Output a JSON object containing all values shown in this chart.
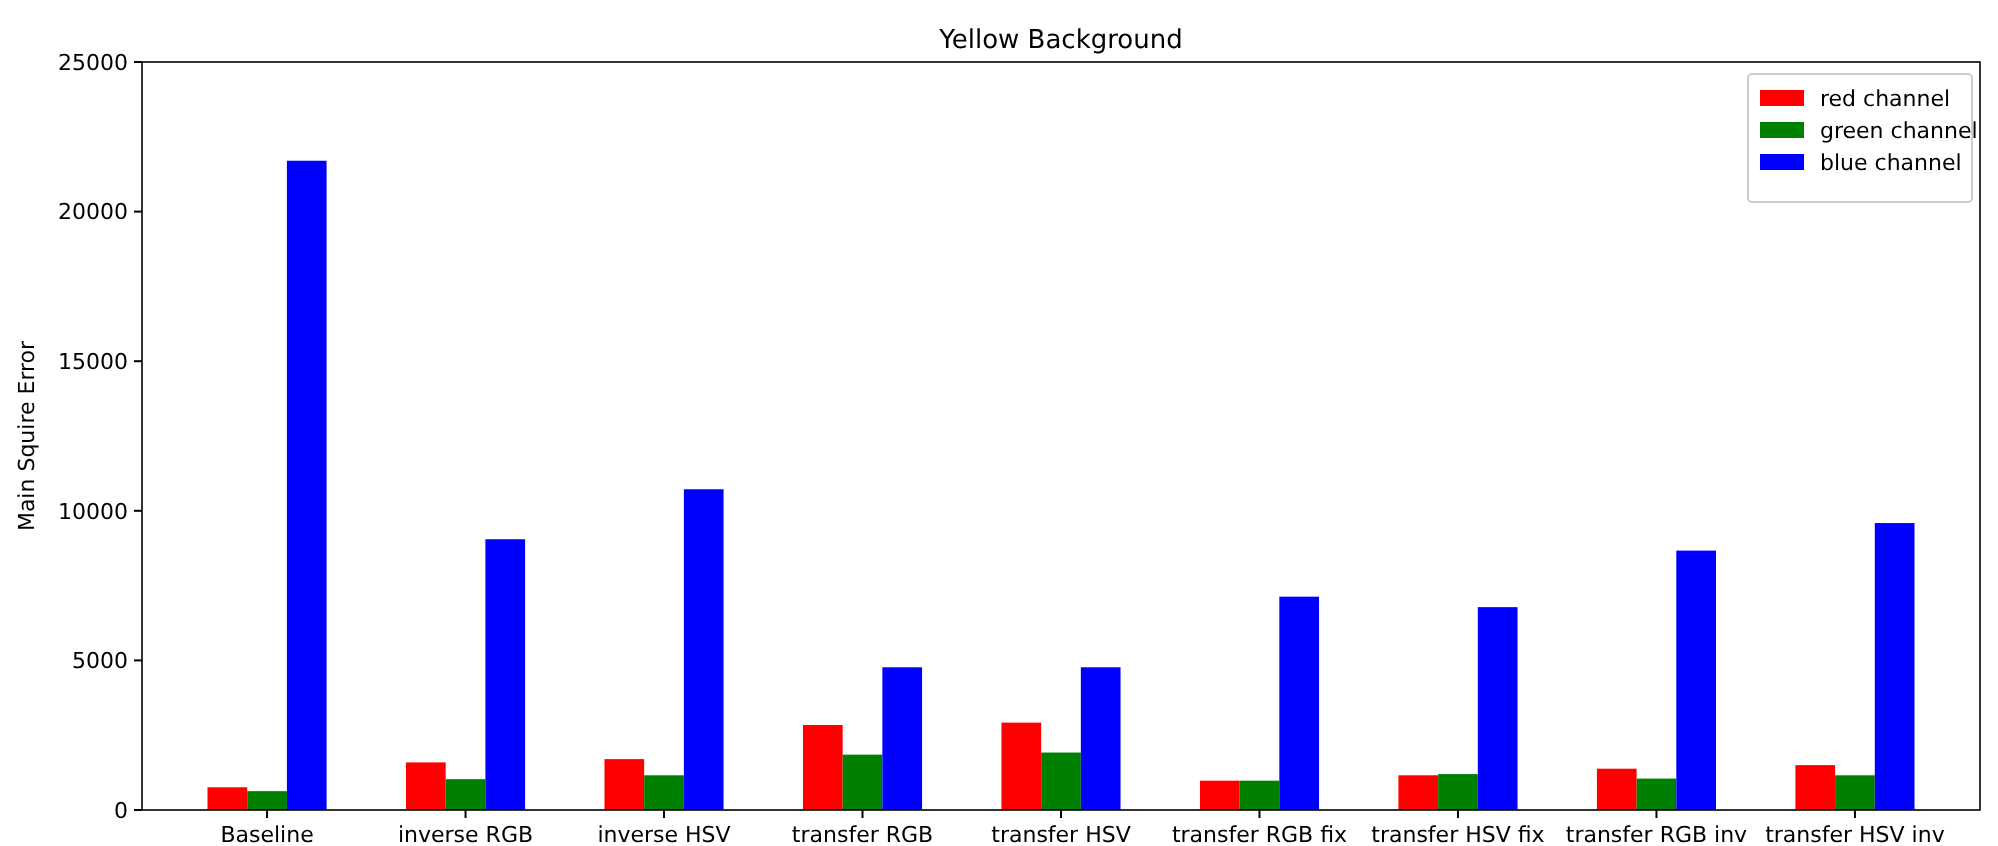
{
  "chart_data": {
    "type": "bar",
    "title": "Yellow Background",
    "ylabel": "Main Squire Error",
    "categories": [
      "Baseline",
      "inverse RGB",
      "inverse HSV",
      "transfer RGB",
      "transfer HSV",
      "transfer RGB fix",
      "transfer HSV fix",
      "transfer RGB inv",
      "transfer HSV inv"
    ],
    "series": [
      {
        "name": "red channel",
        "color": "#ff0000",
        "values": [
          760,
          1590,
          1700,
          2840,
          2920,
          980,
          1160,
          1380,
          1500
        ]
      },
      {
        "name": "green channel",
        "color": "#008000",
        "values": [
          630,
          1030,
          1160,
          1850,
          1920,
          980,
          1200,
          1050,
          1160
        ]
      },
      {
        "name": "blue channel",
        "color": "#0000ff",
        "values": [
          21700,
          9050,
          10720,
          4770,
          4770,
          7130,
          6780,
          8670,
          9590
        ]
      }
    ],
    "ylim": [
      0,
      25000
    ],
    "yticks": [
      0,
      5000,
      10000,
      15000,
      20000,
      25000
    ],
    "grid": false,
    "legend": "top right"
  }
}
